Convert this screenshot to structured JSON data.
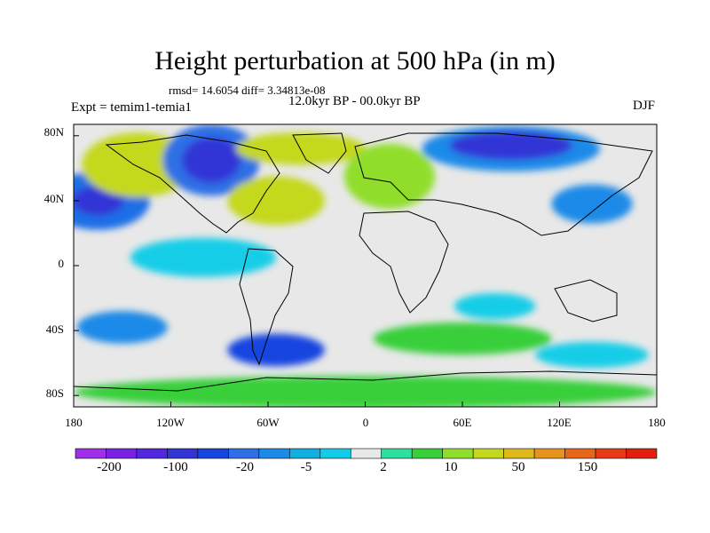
{
  "title": "Height perturbation at 500 hPa (in m)",
  "stats": "rmsd= 14.6054 diff= 3.34813e-08",
  "expt": "Expt = temim1-temia1",
  "period": "12.0kyr BP - 00.0kyr BP",
  "season": "DJF",
  "lat_ticks": [
    "80N",
    "40N",
    "0",
    "40S",
    "80S"
  ],
  "lon_ticks": [
    "180",
    "120W",
    "60W",
    "0",
    "60E",
    "120E",
    "180"
  ],
  "colorbar": {
    "colors": [
      "#9f2fe8",
      "#7a21e6",
      "#5128e0",
      "#3234d6",
      "#1845e0",
      "#2e6fe6",
      "#1c8ae8",
      "#10b0e0",
      "#13cde8",
      "#e8e8e8",
      "#2ce0a0",
      "#38cf3a",
      "#90de2c",
      "#c4d81e",
      "#e0ba1a",
      "#e8941c",
      "#e8661a",
      "#e83a14",
      "#e21e10"
    ],
    "labels": [
      "-200",
      "-100",
      "-20",
      "-5",
      "2",
      "10",
      "50",
      "150"
    ]
  },
  "map": {
    "background": "#e8e8e8",
    "regions": [
      {
        "name": "north-pacific-low",
        "lon": -165,
        "lat": 40,
        "rlon": 32,
        "rlat": 18,
        "color": "#1e6ee6"
      },
      {
        "name": "north-pacific-low-core",
        "lon": -165,
        "lat": 40,
        "rlon": 16,
        "rlat": 9,
        "color": "#3234d6"
      },
      {
        "name": "alaska-high",
        "lon": -140,
        "lat": 62,
        "rlon": 35,
        "rlat": 20,
        "color": "#c4d81e"
      },
      {
        "name": "north-america-low",
        "lon": -95,
        "lat": 65,
        "rlon": 30,
        "rlat": 22,
        "color": "#2e6fe6"
      },
      {
        "name": "north-america-low-core",
        "lon": -95,
        "lat": 65,
        "rlon": 18,
        "rlat": 14,
        "color": "#3234d6"
      },
      {
        "name": "north-atlantic-high",
        "lon": -55,
        "lat": 40,
        "rlon": 30,
        "rlat": 15,
        "color": "#c4d81e"
      },
      {
        "name": "greenland-high",
        "lon": -40,
        "lat": 72,
        "rlon": 40,
        "rlat": 10,
        "color": "#c4d81e"
      },
      {
        "name": "europe-high",
        "lon": 15,
        "lat": 55,
        "rlon": 28,
        "rlat": 20,
        "color": "#90de2c"
      },
      {
        "name": "siberia-low",
        "lon": 90,
        "lat": 72,
        "rlon": 55,
        "rlat": 14,
        "color": "#1c8ae8"
      },
      {
        "name": "siberia-low-core",
        "lon": 90,
        "lat": 74,
        "rlon": 38,
        "rlat": 9,
        "color": "#3234d6"
      },
      {
        "name": "asia-low",
        "lon": 140,
        "lat": 38,
        "rlon": 25,
        "rlat": 12,
        "color": "#1c8ae8"
      },
      {
        "name": "tropical-band-north",
        "lon": -100,
        "lat": 5,
        "rlon": 45,
        "rlat": 12,
        "color": "#13cde8"
      },
      {
        "name": "south-pacific-low",
        "lon": -150,
        "lat": -38,
        "rlon": 28,
        "rlat": 10,
        "color": "#1c8ae8"
      },
      {
        "name": "south-atlantic-low",
        "lon": -55,
        "lat": -52,
        "rlon": 30,
        "rlat": 10,
        "color": "#1845e0"
      },
      {
        "name": "southern-ocean-high",
        "lon": 60,
        "lat": -45,
        "rlon": 55,
        "rlat": 10,
        "color": "#38cf3a"
      },
      {
        "name": "antarctic-band",
        "lon": 0,
        "lat": -78,
        "rlon": 180,
        "rlat": 10,
        "color": "#38cf3a"
      },
      {
        "name": "indian-ocean-low",
        "lon": 80,
        "lat": -25,
        "rlon": 25,
        "rlat": 8,
        "color": "#13cde8"
      },
      {
        "name": "australia-low",
        "lon": 140,
        "lat": -55,
        "rlon": 35,
        "rlat": 8,
        "color": "#13cde8"
      }
    ]
  }
}
